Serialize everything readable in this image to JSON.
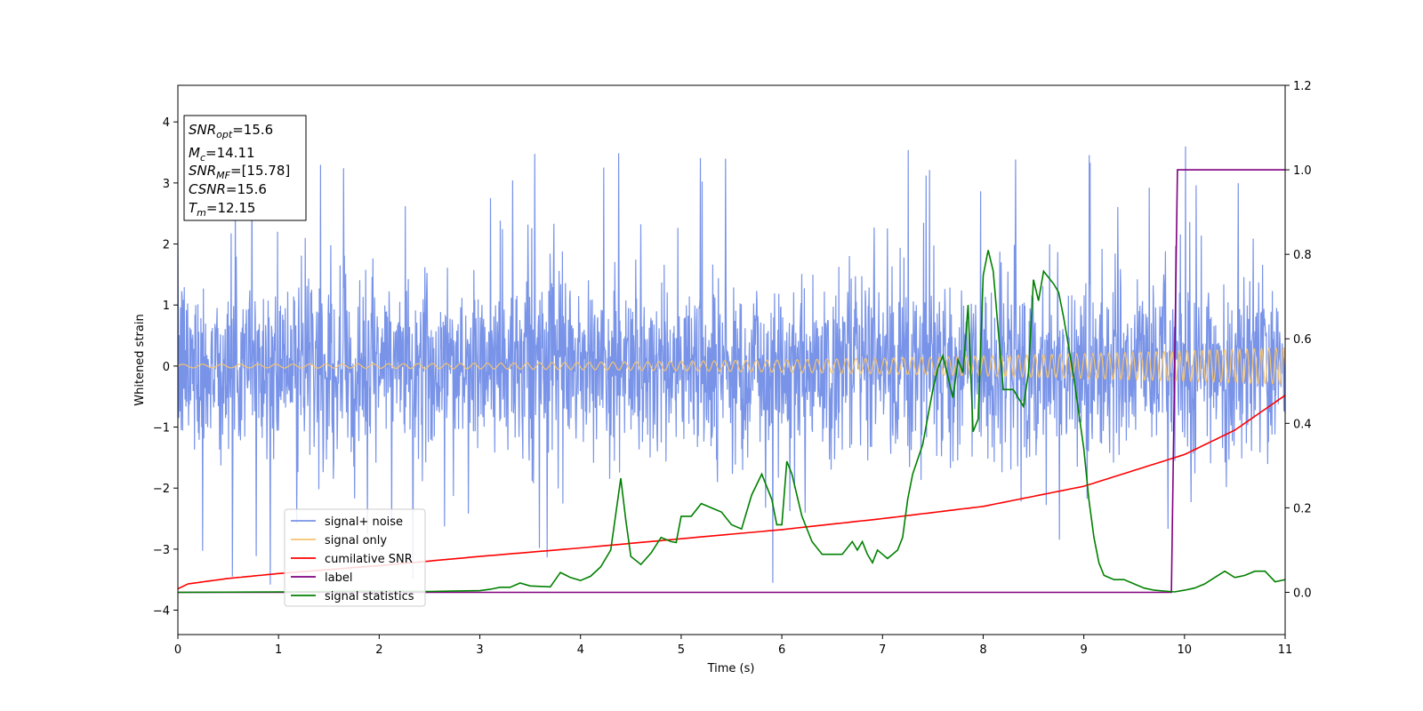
{
  "chart_data": {
    "type": "line",
    "xlabel": "Time (s)",
    "ylabel": "Whitened strain",
    "xlim": [
      0,
      11
    ],
    "ylim": [
      -4.4,
      4.6
    ],
    "y2lim": [
      -0.1,
      1.2
    ],
    "xticks": [
      0,
      1,
      2,
      3,
      4,
      5,
      6,
      7,
      8,
      9,
      10,
      11
    ],
    "yticks": [
      -4,
      -3,
      -2,
      -1,
      0,
      1,
      2,
      3,
      4
    ],
    "y2ticks": [
      "0.0",
      "0.2",
      "0.4",
      "0.6",
      "0.8",
      "1.0",
      "1.2"
    ],
    "y2tick_values": [
      0.0,
      0.2,
      0.4,
      0.6,
      0.8,
      1.0,
      1.2
    ],
    "grid": false,
    "legend_position": "lower-left",
    "annotation": [
      {
        "base": "SNR",
        "sub": "opt",
        "rest": "=15.6"
      },
      {
        "base": "M",
        "sub": "c",
        "rest": "=14.11"
      },
      {
        "base": "SNR",
        "sub": "MF",
        "rest": "=[15.78]"
      },
      {
        "base": "CSNR",
        "sub": "",
        "rest": "=15.6"
      },
      {
        "base": "T",
        "sub": "m",
        "rest": "=12.15"
      }
    ],
    "series": [
      {
        "name": "signal+ noise",
        "color": "#7893e8",
        "axis": "left",
        "description": "noise",
        "amplitude_std": 0.75
      },
      {
        "name": "signal only",
        "color": "#f5c36e",
        "axis": "left",
        "description": "chirp",
        "amplitude_start": 0.03,
        "amplitude_end": 0.3,
        "f_start": 5.0,
        "f_end": 14.0
      },
      {
        "name": "cumilative SNR",
        "color": "#ff0000",
        "axis": "left",
        "x": [
          0,
          0.1,
          0.5,
          1,
          2,
          3,
          4,
          5,
          6,
          7,
          8,
          9,
          10,
          10.5,
          11
        ],
        "y": [
          -3.65,
          -3.57,
          -3.48,
          -3.4,
          -3.27,
          -3.12,
          -2.98,
          -2.83,
          -2.68,
          -2.5,
          -2.3,
          -1.97,
          -1.45,
          -1.05,
          -0.48
        ]
      },
      {
        "name": "label",
        "color": "#800080",
        "axis": "right",
        "x": [
          0,
          9.87,
          9.93,
          11
        ],
        "y": [
          0.0,
          0.0,
          1.0,
          1.0
        ]
      },
      {
        "name": "signal statistics",
        "color": "#008000",
        "axis": "right",
        "x": [
          0,
          1,
          2,
          2.5,
          3,
          3.1,
          3.2,
          3.3,
          3.4,
          3.5,
          3.7,
          3.8,
          3.9,
          4.0,
          4.1,
          4.2,
          4.3,
          4.4,
          4.45,
          4.5,
          4.6,
          4.7,
          4.8,
          4.9,
          4.95,
          5.0,
          5.1,
          5.2,
          5.3,
          5.4,
          5.5,
          5.6,
          5.7,
          5.8,
          5.9,
          5.95,
          6.0,
          6.05,
          6.1,
          6.2,
          6.3,
          6.4,
          6.5,
          6.6,
          6.7,
          6.75,
          6.8,
          6.85,
          6.9,
          6.95,
          7.0,
          7.05,
          7.1,
          7.15,
          7.2,
          7.25,
          7.3,
          7.4,
          7.5,
          7.55,
          7.6,
          7.7,
          7.75,
          7.8,
          7.85,
          7.9,
          7.95,
          8.0,
          8.05,
          8.1,
          8.15,
          8.2,
          8.3,
          8.4,
          8.45,
          8.5,
          8.55,
          8.6,
          8.7,
          8.75,
          8.8,
          8.9,
          9.0,
          9.05,
          9.1,
          9.15,
          9.2,
          9.3,
          9.4,
          9.5,
          9.6,
          9.7,
          9.8,
          9.9,
          10.0,
          10.1,
          10.2,
          10.3,
          10.4,
          10.5,
          10.6,
          10.7,
          10.8,
          10.9,
          11.0
        ],
        "y": [
          0.0,
          0.001,
          0.003,
          0.002,
          0.004,
          0.007,
          0.012,
          0.012,
          0.022,
          0.015,
          0.013,
          0.047,
          0.035,
          0.028,
          0.038,
          0.06,
          0.1,
          0.27,
          0.17,
          0.085,
          0.066,
          0.093,
          0.13,
          0.12,
          0.118,
          0.18,
          0.18,
          0.21,
          0.2,
          0.19,
          0.16,
          0.15,
          0.23,
          0.28,
          0.22,
          0.16,
          0.16,
          0.31,
          0.28,
          0.18,
          0.12,
          0.09,
          0.09,
          0.09,
          0.12,
          0.1,
          0.12,
          0.09,
          0.07,
          0.1,
          0.09,
          0.08,
          0.09,
          0.1,
          0.13,
          0.22,
          0.28,
          0.35,
          0.48,
          0.53,
          0.56,
          0.46,
          0.55,
          0.52,
          0.68,
          0.38,
          0.41,
          0.75,
          0.81,
          0.76,
          0.62,
          0.48,
          0.48,
          0.44,
          0.52,
          0.74,
          0.69,
          0.76,
          0.73,
          0.71,
          0.65,
          0.51,
          0.34,
          0.22,
          0.13,
          0.07,
          0.04,
          0.03,
          0.03,
          0.02,
          0.01,
          0.005,
          0.003,
          0.001,
          0.005,
          0.01,
          0.02,
          0.035,
          0.05,
          0.035,
          0.04,
          0.05,
          0.05,
          0.025,
          0.03
        ]
      }
    ]
  }
}
